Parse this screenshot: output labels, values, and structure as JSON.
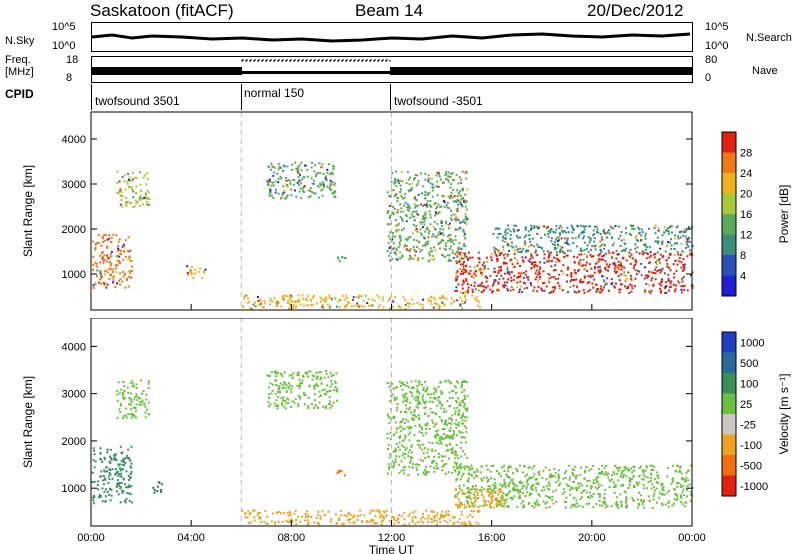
{
  "header": {
    "station": "Saskatoon (fitACF)",
    "beam": "Beam 14",
    "date": "20/Dec/2012"
  },
  "top_panels": {
    "nsky_label": "N.Sky",
    "nsky_ticks": [
      "10^5",
      "10^0"
    ],
    "nsearch_label": "N.Search",
    "freq_label_1": "Freq.",
    "freq_label_2": "[MHz]",
    "freq_ticks": [
      "18",
      "8"
    ],
    "nave_label": "Nave",
    "nave_ticks": [
      "80",
      "0"
    ],
    "cpid_label": "CPID"
  },
  "cpid_segments": [
    {
      "label": "twofsound 3501",
      "start": 0,
      "end": 6
    },
    {
      "label": "normal 150",
      "start": 6,
      "end": 12
    },
    {
      "label": "twofsound -3501",
      "start": 12,
      "end": 24
    }
  ],
  "chart_data": [
    {
      "type": "heatmap",
      "title": "Power",
      "ylabel": "Slant Range [km]",
      "xlabel": "Time UT",
      "x_ticks": [
        "00:00",
        "04:00",
        "08:00",
        "12:00",
        "16:00",
        "20:00",
        "00:00"
      ],
      "xlim_hours": [
        0,
        24
      ],
      "y_ticks": [
        1000,
        2000,
        3000,
        4000
      ],
      "ylim": [
        200,
        4600
      ],
      "colorbar_label": "Power [dB]",
      "colorbar_ticks": [
        "4",
        "8",
        "12",
        "16",
        "20",
        "24",
        "28"
      ],
      "colorbar_colors": [
        "#1f1fd6",
        "#2a4fb8",
        "#3b8f7a",
        "#5aa85a",
        "#a8c83a",
        "#f0b020",
        "#f07818",
        "#e02010"
      ],
      "echo_regions": [
        {
          "t0": 0.0,
          "t1": 1.6,
          "r0": 700,
          "r1": 1900,
          "level": 24
        },
        {
          "t0": 1.0,
          "t1": 2.3,
          "r0": 2500,
          "r1": 3300,
          "level": 16
        },
        {
          "t0": 3.8,
          "t1": 4.6,
          "r0": 900,
          "r1": 1200,
          "level": 20
        },
        {
          "t0": 7.0,
          "t1": 9.8,
          "r0": 2700,
          "r1": 3500,
          "level": 12
        },
        {
          "t0": 9.8,
          "t1": 10.2,
          "r0": 1250,
          "r1": 1450,
          "level": 12
        },
        {
          "t0": 11.8,
          "t1": 15.0,
          "r0": 1300,
          "r1": 3300,
          "level": 12
        },
        {
          "t0": 14.5,
          "t1": 24.0,
          "r0": 600,
          "r1": 1500,
          "level": 28
        },
        {
          "t0": 16.0,
          "t1": 24.0,
          "r0": 1500,
          "r1": 2100,
          "level": 8
        },
        {
          "t0": 6.0,
          "t1": 15.5,
          "r0": 250,
          "r1": 550,
          "level": 20
        }
      ]
    },
    {
      "type": "heatmap",
      "title": "Velocity",
      "ylabel": "Slant Range [km]",
      "xlabel": "Time UT",
      "x_ticks": [
        "00:00",
        "04:00",
        "08:00",
        "12:00",
        "16:00",
        "20:00",
        "00:00"
      ],
      "xlim_hours": [
        0,
        24
      ],
      "y_ticks": [
        1000,
        2000,
        3000,
        4000
      ],
      "ylim": [
        200,
        4600
      ],
      "colorbar_label": "Velocity [m s⁻¹]",
      "colorbar_ticks": [
        "1000",
        "500",
        "100",
        "25",
        "-25",
        "-100",
        "-500",
        "-1000"
      ],
      "colorbar_colors": [
        "#1f3fc0",
        "#2a6a9a",
        "#3b8f5a",
        "#6cc040",
        "#c8c8c0",
        "#f0a020",
        "#f07010",
        "#e02010"
      ],
      "echo_regions": [
        {
          "t0": 0.0,
          "t1": 1.6,
          "r0": 700,
          "r1": 1900,
          "v": "100"
        },
        {
          "t0": 1.0,
          "t1": 2.3,
          "r0": 2500,
          "r1": 3300,
          "v": "25"
        },
        {
          "t0": 2.4,
          "t1": 2.8,
          "r0": 900,
          "r1": 1200,
          "v": "500"
        },
        {
          "t0": 7.0,
          "t1": 9.8,
          "r0": 2700,
          "r1": 3500,
          "v": "25"
        },
        {
          "t0": 9.8,
          "t1": 10.2,
          "r0": 1250,
          "r1": 1450,
          "v": "-500"
        },
        {
          "t0": 11.8,
          "t1": 15.0,
          "r0": 1300,
          "r1": 3300,
          "v": "25"
        },
        {
          "t0": 14.5,
          "t1": 24.0,
          "r0": 600,
          "r1": 1500,
          "v": "25"
        },
        {
          "t0": 14.5,
          "t1": 16.5,
          "r0": 600,
          "r1": 1000,
          "v": "-100"
        },
        {
          "t0": 6.0,
          "t1": 15.5,
          "r0": 250,
          "r1": 550,
          "v": "-100"
        }
      ]
    }
  ]
}
